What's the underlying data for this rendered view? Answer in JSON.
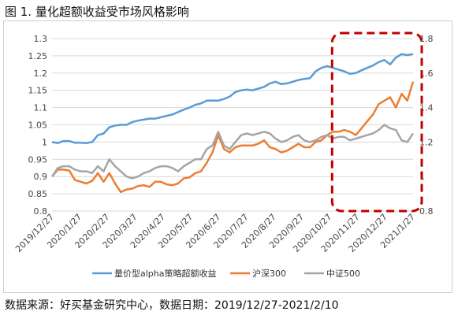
{
  "figure": {
    "title": "图 1. 量化超额收益受市场风格影响",
    "source": "数据来源：好买基金研究中心，数据日期：2019/12/27-2021/2/10"
  },
  "chart_data": {
    "type": "line",
    "title": "",
    "xlabel": "",
    "ylabel": "",
    "x_tick_labels": [
      "2019/12/27",
      "2020/1/27",
      "2020/2/27",
      "2020/3/27",
      "2020/4/27",
      "2020/5/27",
      "2020/6/27",
      "2020/7/27",
      "2020/8/27",
      "2020/9/27",
      "2020/10/27",
      "2020/11/27",
      "2020/12/27",
      "2021/1/27"
    ],
    "y_left": {
      "min": 0.8,
      "max": 1.3,
      "ticks": [
        "0.8",
        "0.85",
        "0.9",
        "0.95",
        "1",
        "1.05",
        "1.1",
        "1.15",
        "1.2",
        "1.25",
        "1.3"
      ]
    },
    "y_right": {
      "min": 0.8,
      "max": 1.8,
      "ticks": [
        "0.8",
        "1",
        "1.2",
        "1.4",
        "1.6",
        "1.8"
      ]
    },
    "grid": true,
    "legend_position": "bottom",
    "x_index_max": 60,
    "series": [
      {
        "name": "量价型alpha策略超额收益",
        "axis": "left",
        "color": "#5b9bd5",
        "values": [
          1.0,
          0.997,
          1.003,
          1.003,
          0.998,
          0.998,
          0.997,
          1.0,
          1.02,
          1.025,
          1.043,
          1.048,
          1.05,
          1.05,
          1.058,
          1.062,
          1.065,
          1.068,
          1.068,
          1.072,
          1.076,
          1.08,
          1.087,
          1.094,
          1.1,
          1.108,
          1.112,
          1.12,
          1.12,
          1.12,
          1.125,
          1.132,
          1.145,
          1.15,
          1.152,
          1.15,
          1.155,
          1.16,
          1.17,
          1.175,
          1.168,
          1.17,
          1.175,
          1.18,
          1.183,
          1.185,
          1.205,
          1.215,
          1.22,
          1.215,
          1.21,
          1.205,
          1.198,
          1.2,
          1.208,
          1.215,
          1.222,
          1.232,
          1.238,
          1.225,
          1.245,
          1.255,
          1.252,
          1.255
        ]
      },
      {
        "name": "沪深300",
        "axis": "right",
        "color": "#ed7d31",
        "values": [
          1.0,
          1.04,
          1.04,
          1.035,
          0.98,
          0.97,
          0.96,
          0.975,
          1.02,
          0.97,
          1.02,
          0.96,
          0.91,
          0.925,
          0.93,
          0.945,
          0.95,
          0.94,
          0.97,
          0.97,
          0.955,
          0.95,
          0.96,
          0.99,
          0.995,
          1.02,
          1.03,
          1.08,
          1.14,
          1.24,
          1.16,
          1.14,
          1.17,
          1.18,
          1.18,
          1.18,
          1.19,
          1.21,
          1.17,
          1.16,
          1.14,
          1.15,
          1.17,
          1.19,
          1.17,
          1.17,
          1.2,
          1.21,
          1.24,
          1.26,
          1.26,
          1.27,
          1.26,
          1.24,
          1.28,
          1.32,
          1.36,
          1.42,
          1.44,
          1.46,
          1.4,
          1.48,
          1.44,
          1.55
        ]
      },
      {
        "name": "中证500",
        "axis": "right",
        "color": "#a5a5a5",
        "values": [
          1.0,
          1.05,
          1.06,
          1.06,
          1.04,
          1.03,
          1.03,
          1.02,
          1.06,
          1.03,
          1.1,
          1.06,
          1.03,
          1.0,
          0.99,
          1.0,
          1.02,
          1.03,
          1.05,
          1.06,
          1.06,
          1.05,
          1.03,
          1.06,
          1.08,
          1.1,
          1.1,
          1.16,
          1.18,
          1.26,
          1.18,
          1.16,
          1.2,
          1.24,
          1.25,
          1.24,
          1.25,
          1.26,
          1.25,
          1.22,
          1.2,
          1.21,
          1.23,
          1.24,
          1.21,
          1.2,
          1.21,
          1.23,
          1.24,
          1.22,
          1.23,
          1.23,
          1.21,
          1.22,
          1.23,
          1.24,
          1.25,
          1.27,
          1.3,
          1.28,
          1.27,
          1.21,
          1.2,
          1.25
        ]
      }
    ],
    "highlight": {
      "type": "dashed-rounded-rect",
      "color": "#c00000",
      "x_start_label": "2020/10/27",
      "x_end_label": "2021/1/27"
    }
  }
}
